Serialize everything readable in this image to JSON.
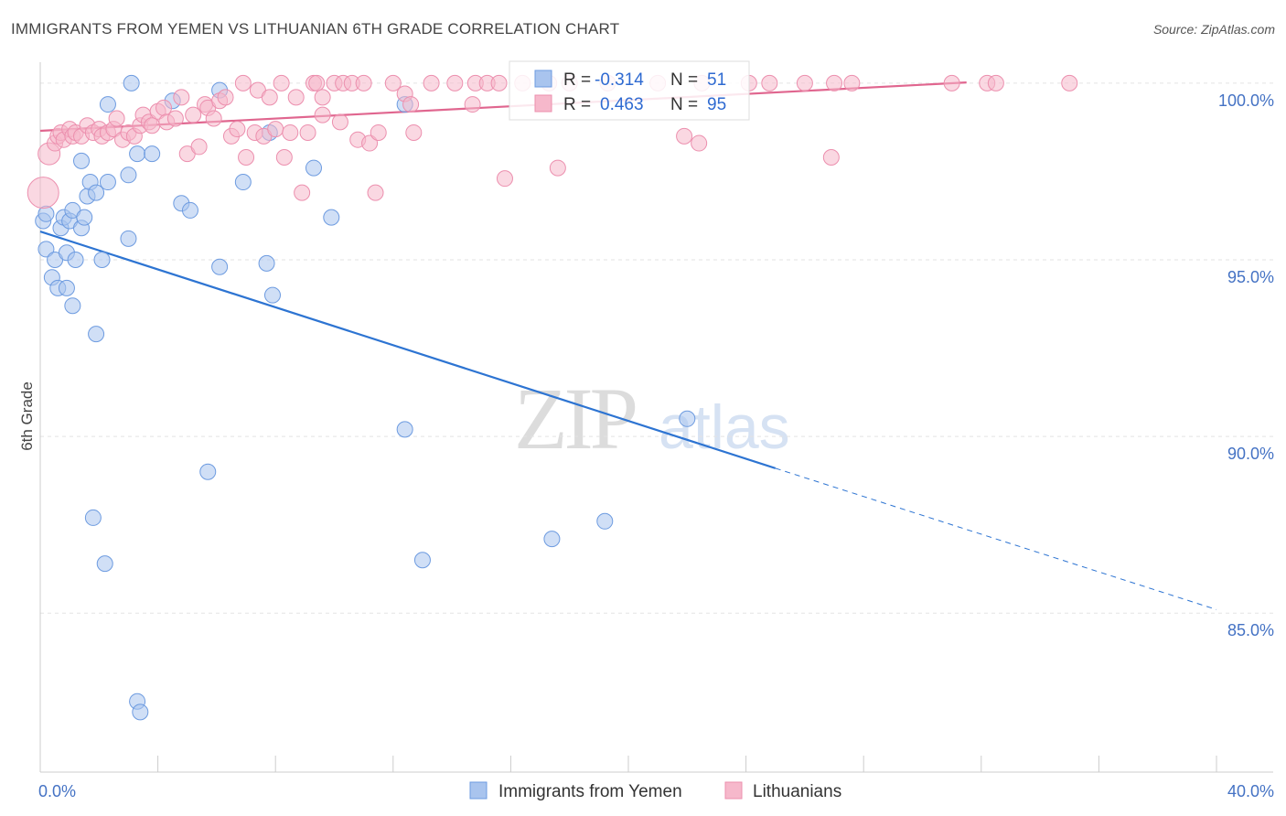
{
  "chart_data": {
    "type": "scatter",
    "title": "IMMIGRANTS FROM YEMEN VS LITHUANIAN 6TH GRADE CORRELATION CHART",
    "source": "Source: ZipAtlas.com",
    "xlabel": "",
    "ylabel": "6th Grade",
    "xlim": [
      0,
      40
    ],
    "ylim": [
      80.5,
      100.8
    ],
    "x_tick_labels": [
      {
        "value": 0,
        "label": "0.0%"
      },
      {
        "value": 40,
        "label": "40.0%"
      }
    ],
    "y_tick_labels": [
      {
        "value": 100,
        "label": "100.0%"
      },
      {
        "value": 95,
        "label": "95.0%"
      },
      {
        "value": 90,
        "label": "90.0%"
      },
      {
        "value": 85,
        "label": "85.0%"
      }
    ],
    "watermark": {
      "zip": "ZIP",
      "atlas": "atlas"
    },
    "stats": {
      "r_label": "R =",
      "n_label": "N =",
      "series": [
        {
          "name": "Immigrants from Yemen",
          "r": "-0.314",
          "n": "51"
        },
        {
          "name": "Lithuanians",
          "r": "0.463",
          "n": "95"
        }
      ]
    },
    "series": [
      {
        "name": "Immigrants from Yemen",
        "color": "#a9c4ee",
        "stroke": "#6d9be0",
        "line_color": "#2d74d2",
        "trend": {
          "x0": 0,
          "y0": 95.8,
          "x1": 25,
          "y1": 89.1,
          "dash_to_x": 40,
          "dash_to_y": 85.1
        },
        "points": [
          [
            0.1,
            96.1
          ],
          [
            0.2,
            96.3
          ],
          [
            0.2,
            95.3
          ],
          [
            0.4,
            94.5
          ],
          [
            0.5,
            95.0
          ],
          [
            0.6,
            94.2
          ],
          [
            0.7,
            95.9
          ],
          [
            0.8,
            96.2
          ],
          [
            0.9,
            95.2
          ],
          [
            0.9,
            94.2
          ],
          [
            1.0,
            96.1
          ],
          [
            1.1,
            93.7
          ],
          [
            1.1,
            96.4
          ],
          [
            1.2,
            95.0
          ],
          [
            1.4,
            97.8
          ],
          [
            1.4,
            95.9
          ],
          [
            1.5,
            96.2
          ],
          [
            1.6,
            96.8
          ],
          [
            1.7,
            97.2
          ],
          [
            1.9,
            92.9
          ],
          [
            1.9,
            96.9
          ],
          [
            2.1,
            95.0
          ],
          [
            2.2,
            86.4
          ],
          [
            2.3,
            97.2
          ],
          [
            2.3,
            99.4
          ],
          [
            1.8,
            87.7
          ],
          [
            3.0,
            97.4
          ],
          [
            3.0,
            95.6
          ],
          [
            3.1,
            100.0
          ],
          [
            3.3,
            98.0
          ],
          [
            3.3,
            82.5
          ],
          [
            3.4,
            82.2
          ],
          [
            3.8,
            98.0
          ],
          [
            4.5,
            99.5
          ],
          [
            4.8,
            96.6
          ],
          [
            5.1,
            96.4
          ],
          [
            5.7,
            89.0
          ],
          [
            6.1,
            99.8
          ],
          [
            6.1,
            94.8
          ],
          [
            6.9,
            97.2
          ],
          [
            7.7,
            94.9
          ],
          [
            7.8,
            98.6
          ],
          [
            7.9,
            94.0
          ],
          [
            9.3,
            97.6
          ],
          [
            9.9,
            96.2
          ],
          [
            12.4,
            99.4
          ],
          [
            12.4,
            90.2
          ],
          [
            13.0,
            86.5
          ],
          [
            17.4,
            87.1
          ],
          [
            19.2,
            87.6
          ],
          [
            22.0,
            90.5
          ]
        ]
      },
      {
        "name": "Lithuanians",
        "color": "#f6b8cb",
        "stroke": "#ec8fae",
        "line_color": "#e0668f",
        "trend": {
          "x0": 0,
          "y0": 98.65,
          "x1": 31.5,
          "y1": 100.02
        },
        "points": [
          [
            0.1,
            96.9
          ],
          [
            0.3,
            98.0
          ],
          [
            0.5,
            98.3
          ],
          [
            0.6,
            98.5
          ],
          [
            0.7,
            98.6
          ],
          [
            0.8,
            98.4
          ],
          [
            1.0,
            98.7
          ],
          [
            1.1,
            98.5
          ],
          [
            1.2,
            98.6
          ],
          [
            1.4,
            98.5
          ],
          [
            1.6,
            98.8
          ],
          [
            1.8,
            98.6
          ],
          [
            2.0,
            98.7
          ],
          [
            2.1,
            98.5
          ],
          [
            2.3,
            98.6
          ],
          [
            2.5,
            98.7
          ],
          [
            2.6,
            99.0
          ],
          [
            2.8,
            98.4
          ],
          [
            3.0,
            98.6
          ],
          [
            3.2,
            98.5
          ],
          [
            3.4,
            98.8
          ],
          [
            3.5,
            99.1
          ],
          [
            3.7,
            98.9
          ],
          [
            3.8,
            98.8
          ],
          [
            4.0,
            99.2
          ],
          [
            4.2,
            99.3
          ],
          [
            4.3,
            98.9
          ],
          [
            4.6,
            99.0
          ],
          [
            4.8,
            99.6
          ],
          [
            5.0,
            98.0
          ],
          [
            5.2,
            99.1
          ],
          [
            5.4,
            98.2
          ],
          [
            5.6,
            99.4
          ],
          [
            5.7,
            99.3
          ],
          [
            5.9,
            99.0
          ],
          [
            6.1,
            99.5
          ],
          [
            6.3,
            99.6
          ],
          [
            6.5,
            98.5
          ],
          [
            6.7,
            98.7
          ],
          [
            6.9,
            100.0
          ],
          [
            7.0,
            97.9
          ],
          [
            7.3,
            98.6
          ],
          [
            7.4,
            99.8
          ],
          [
            7.6,
            98.5
          ],
          [
            7.8,
            99.6
          ],
          [
            8.0,
            98.7
          ],
          [
            8.2,
            100.0
          ],
          [
            8.3,
            97.9
          ],
          [
            8.5,
            98.6
          ],
          [
            8.7,
            99.6
          ],
          [
            8.9,
            96.9
          ],
          [
            9.1,
            98.6
          ],
          [
            9.3,
            100.0
          ],
          [
            9.4,
            100.0
          ],
          [
            9.6,
            99.6
          ],
          [
            9.6,
            99.1
          ],
          [
            10.0,
            100.0
          ],
          [
            10.2,
            98.9
          ],
          [
            10.3,
            100.0
          ],
          [
            10.6,
            100.0
          ],
          [
            10.8,
            98.4
          ],
          [
            11.0,
            100.0
          ],
          [
            11.2,
            98.3
          ],
          [
            11.4,
            96.9
          ],
          [
            11.5,
            98.6
          ],
          [
            12.0,
            100.0
          ],
          [
            12.4,
            99.7
          ],
          [
            12.6,
            99.4
          ],
          [
            12.7,
            98.6
          ],
          [
            13.3,
            100.0
          ],
          [
            14.1,
            100.0
          ],
          [
            14.7,
            99.4
          ],
          [
            14.8,
            100.0
          ],
          [
            15.2,
            100.0
          ],
          [
            15.6,
            100.0
          ],
          [
            15.8,
            97.3
          ],
          [
            16.4,
            100.0
          ],
          [
            17.3,
            100.0
          ],
          [
            17.6,
            97.6
          ],
          [
            18.0,
            100.0
          ],
          [
            19.3,
            100.0
          ],
          [
            21.0,
            100.0
          ],
          [
            21.9,
            98.5
          ],
          [
            22.4,
            98.3
          ],
          [
            22.5,
            100.0
          ],
          [
            24.1,
            100.0
          ],
          [
            24.8,
            100.0
          ],
          [
            26.0,
            100.0
          ],
          [
            26.9,
            97.9
          ],
          [
            27.0,
            100.0
          ],
          [
            27.6,
            100.0
          ],
          [
            31.0,
            100.0
          ],
          [
            32.2,
            100.0
          ],
          [
            32.5,
            100.0
          ],
          [
            35.0,
            100.0
          ]
        ]
      }
    ]
  }
}
